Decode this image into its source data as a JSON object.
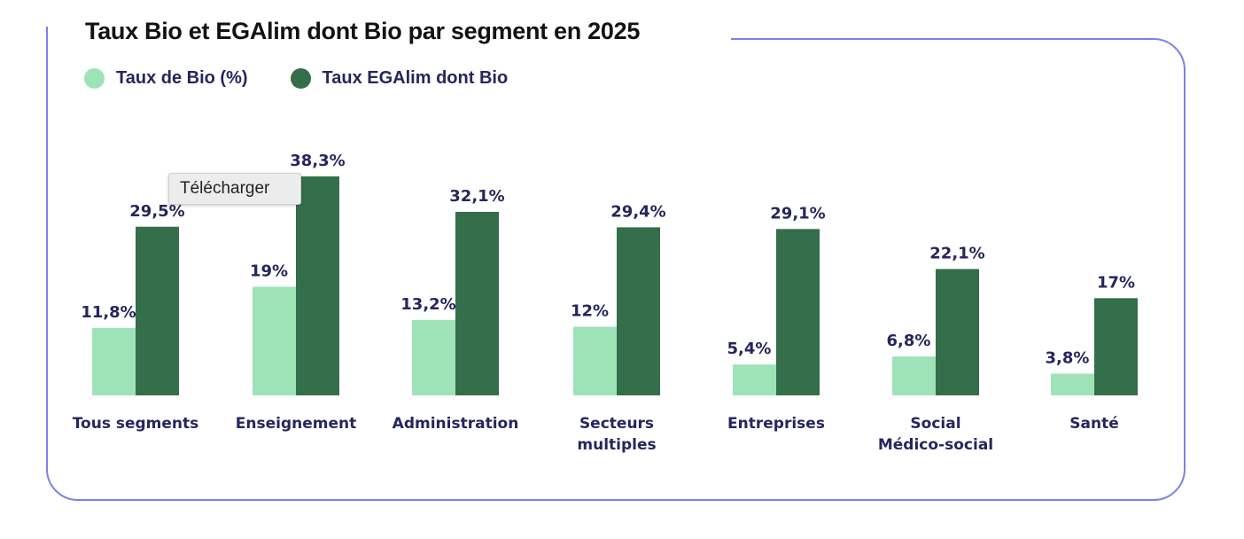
{
  "chart_data": {
    "type": "bar",
    "title": "Taux Bio et EGAlim dont Bio par segment en 2025",
    "categories": [
      [
        "Tous segments"
      ],
      [
        "Enseignement"
      ],
      [
        "Administration"
      ],
      [
        "Secteurs",
        "multiples"
      ],
      [
        "Entreprises"
      ],
      [
        "Social",
        "Médico-social"
      ],
      [
        "Santé"
      ]
    ],
    "series": [
      {
        "name": "Taux de Bio (%)",
        "color": "#9ee3b8",
        "values": [
          11.8,
          19,
          13.2,
          12,
          5.4,
          6.8,
          3.8
        ],
        "labels": [
          "11,8%",
          "19%",
          "13,2%",
          "12%",
          "5,4%",
          "6,8%",
          "3,8%"
        ]
      },
      {
        "name": "Taux EGAlim dont Bio",
        "color": "#346e4a",
        "values": [
          29.5,
          38.3,
          32.1,
          29.4,
          29.1,
          22.1,
          17
        ],
        "labels": [
          "29,5%",
          "38,3%",
          "32,1%",
          "29,4%",
          "29,1%",
          "22,1%",
          "17%"
        ]
      }
    ],
    "ylim": [
      0,
      38.3
    ],
    "grid": false,
    "legend": "top-left",
    "frame_color": "#8080e6",
    "text_color": "#26265e"
  },
  "tooltip": {
    "text": "Télécharger"
  }
}
